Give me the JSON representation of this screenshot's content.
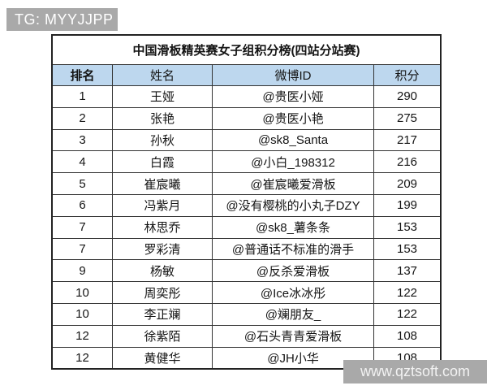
{
  "watermarks": {
    "top_left": "TG: MYYJJPP",
    "bottom_right": "www.qztsoft.com"
  },
  "table": {
    "title": "中国滑板精英赛女子组积分榜(四站分站赛)",
    "columns": [
      "排名",
      "姓名",
      "微博ID",
      "积分"
    ],
    "rows": [
      [
        "1",
        "王娅",
        "@贵医小娅",
        "290"
      ],
      [
        "2",
        "张艳",
        "@贵医小艳",
        "275"
      ],
      [
        "3",
        "孙秋",
        "@sk8_Santa",
        "217"
      ],
      [
        "4",
        "白霞",
        "@小白_198312",
        "216"
      ],
      [
        "5",
        "崔宸曦",
        "@崔宸曦爱滑板",
        "209"
      ],
      [
        "6",
        "冯紫月",
        "@没有樱桃的小丸子DZY",
        "199"
      ],
      [
        "7",
        "林思乔",
        "@sk8_薯条条",
        "153"
      ],
      [
        "7",
        "罗彩清",
        "@普通话不标准的滑手",
        "153"
      ],
      [
        "9",
        "杨敏",
        "@反杀爱滑板",
        "137"
      ],
      [
        "10",
        "周奕彤",
        "@Ice冰冰彤",
        "122"
      ],
      [
        "10",
        "李正斓",
        "@斓朋友_",
        "122"
      ],
      [
        "12",
        "徐紫陌",
        "@石头青青爱滑板",
        "108"
      ],
      [
        "12",
        "黄健华",
        "@JH小华",
        "108"
      ]
    ]
  },
  "colors": {
    "header_bg": "#bdd7ee",
    "watermark_bg": "#a9a9a9",
    "border": "#333333"
  }
}
